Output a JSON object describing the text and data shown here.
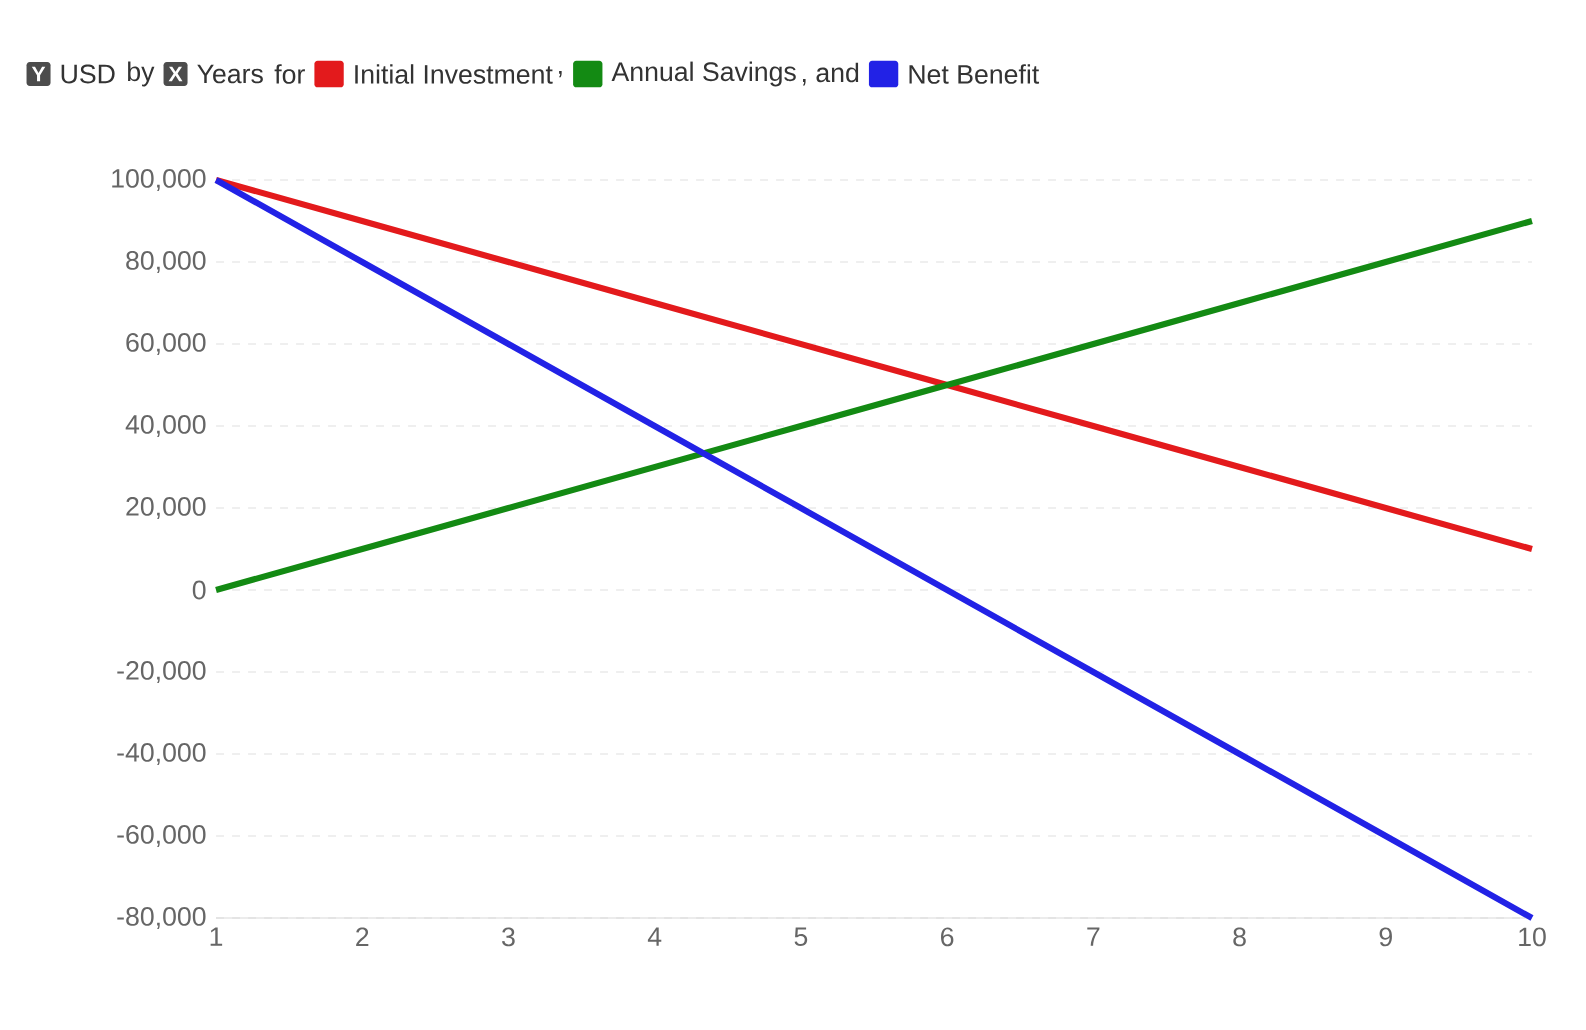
{
  "chart_data": {
    "type": "line",
    "ylabel": "USD",
    "xlabel": "Years",
    "annotations": [
      "Y",
      "by",
      "X",
      "for",
      ",",
      ", and"
    ],
    "x": [
      1,
      2,
      3,
      4,
      5,
      6,
      7,
      8,
      9,
      10
    ],
    "series": [
      {
        "name": "Initial Investment",
        "color": "#e31a1c",
        "values": [
          100000,
          90000,
          80000,
          70000,
          60000,
          50000,
          40000,
          30000,
          20000,
          10000
        ]
      },
      {
        "name": "Annual Savings",
        "color": "#138a13",
        "values": [
          0,
          10000,
          20000,
          30000,
          40000,
          50000,
          60000,
          70000,
          80000,
          90000
        ]
      },
      {
        "name": "Net Benefit",
        "color": "#2222e6",
        "values": [
          100000,
          80000,
          60000,
          40000,
          20000,
          0,
          -20000,
          -40000,
          -60000,
          -80000
        ]
      }
    ],
    "xlim": [
      1,
      10
    ],
    "xticks": [
      1,
      2,
      3,
      4,
      5,
      6,
      7,
      8,
      9,
      10
    ],
    "ylim": [
      -80000,
      100000
    ],
    "yticks": [
      {
        "value": -80000,
        "label": "-80,000"
      },
      {
        "value": -60000,
        "label": "-60,000"
      },
      {
        "value": -40000,
        "label": "-40,000"
      },
      {
        "value": -20000,
        "label": "-20,000"
      },
      0,
      {
        "value": 20000,
        "label": "20,000"
      },
      {
        "value": 40000,
        "label": "40,000"
      },
      {
        "value": 60000,
        "label": "60,000"
      },
      {
        "value": 80000,
        "label": "80,000"
      },
      {
        "value": 100000,
        "label": "100,000"
      }
    ],
    "grid": "y",
    "legend": "top",
    "marker": "none",
    "line_style": "solid"
  }
}
